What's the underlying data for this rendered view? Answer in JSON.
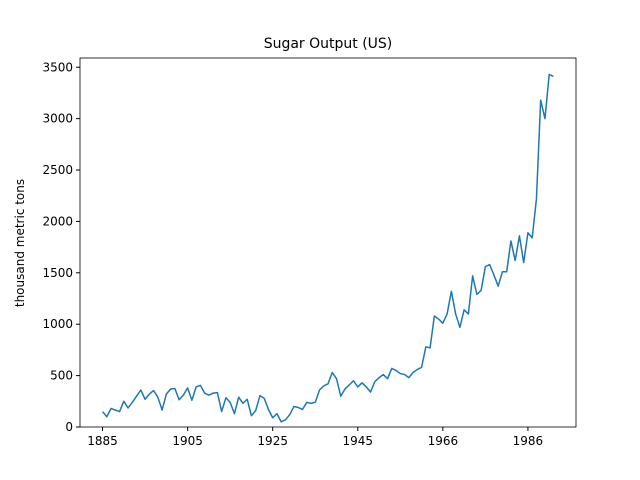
{
  "chart_data": {
    "type": "line",
    "title": "Sugar Output (US)",
    "y_label": "thousand metric tons",
    "categories": [
      "1885",
      null,
      null,
      null,
      null,
      null,
      null,
      null,
      null,
      null,
      null,
      null,
      null,
      null,
      null,
      null,
      null,
      null,
      null,
      null,
      "1905",
      null,
      null,
      null,
      null,
      null,
      null,
      null,
      null,
      null,
      null,
      null,
      null,
      null,
      null,
      null,
      null,
      null,
      null,
      null,
      "1925",
      null,
      null,
      null,
      null,
      null,
      null,
      null,
      null,
      null,
      null,
      null,
      null,
      null,
      null,
      null,
      null,
      null,
      null,
      null,
      "1945",
      null,
      null,
      null,
      null,
      null,
      null,
      null,
      null,
      null,
      null,
      null,
      null,
      null,
      null,
      null,
      null,
      null,
      null,
      null,
      "1966",
      null,
      null,
      null,
      null,
      null,
      null,
      null,
      null,
      null,
      null,
      null,
      null,
      null,
      null,
      null,
      null,
      null,
      null,
      null,
      "1986",
      null,
      null,
      null,
      null,
      null,
      null
    ],
    "values": [
      150,
      100,
      180,
      165,
      150,
      250,
      185,
      240,
      300,
      360,
      270,
      320,
      355,
      290,
      165,
      320,
      370,
      375,
      265,
      310,
      380,
      260,
      390,
      405,
      330,
      310,
      330,
      335,
      150,
      285,
      240,
      130,
      290,
      230,
      270,
      110,
      160,
      305,
      280,
      170,
      90,
      130,
      50,
      70,
      120,
      200,
      190,
      170,
      240,
      230,
      240,
      360,
      400,
      420,
      530,
      470,
      300,
      370,
      410,
      450,
      390,
      430,
      390,
      340,
      440,
      480,
      510,
      470,
      570,
      550,
      520,
      510,
      480,
      530,
      560,
      580,
      780,
      770,
      1080,
      1050,
      1010,
      1100,
      1320,
      1100,
      970,
      1140,
      1100,
      1470,
      1290,
      1330,
      1560,
      1580,
      1480,
      1370,
      1510,
      1510,
      1810,
      1620,
      1860,
      1600,
      1890,
      1840,
      2220,
      3180,
      3000,
      3430,
      3410
    ],
    "color": "#1f77b4",
    "ylim": [
      0,
      3590
    ],
    "yticks": [
      0,
      500,
      1000,
      1500,
      2000,
      2500,
      3000,
      3500
    ]
  }
}
